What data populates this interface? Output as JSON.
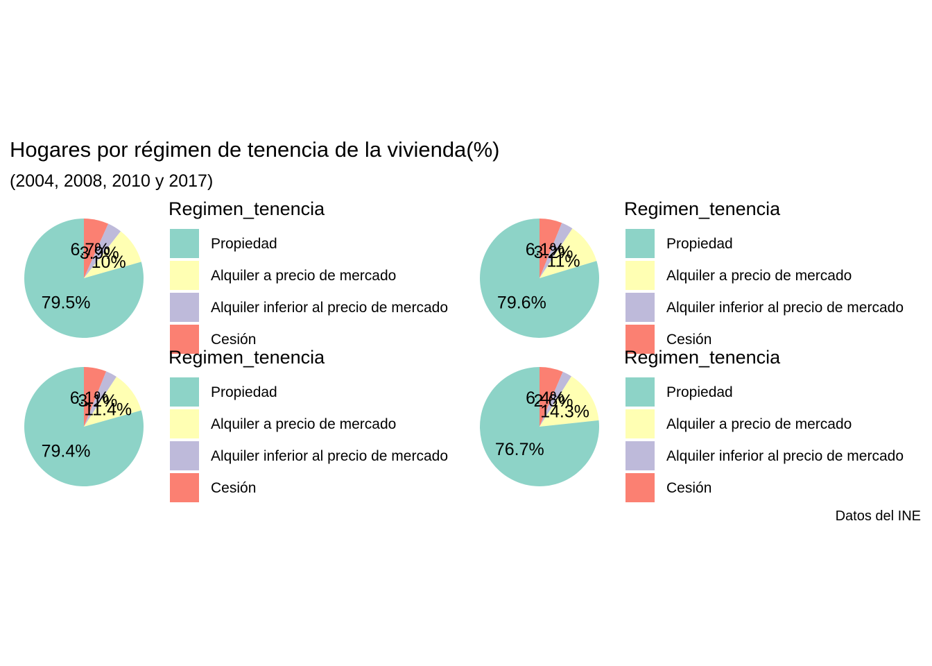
{
  "title": "Hogares por régimen de tenencia de la vivienda(%)",
  "subtitle": "(2004, 2008, 2010 y 2017)",
  "caption": "Datos del INE",
  "legend": {
    "title": "Regimen_tenencia",
    "items": [
      {
        "label": "Propiedad",
        "color": "#8DD3C7"
      },
      {
        "label": "Alquiler a precio de mercado",
        "color": "#FFFFB3"
      },
      {
        "label": "Alquiler inferior al precio de mercado",
        "color": "#BEBADA"
      },
      {
        "label": "Cesión",
        "color": "#FB8072"
      }
    ]
  },
  "chart_data": [
    {
      "type": "pie",
      "categories": [
        "Propiedad",
        "Alquiler a precio de mercado",
        "Alquiler inferior al precio de mercado",
        "Cesión"
      ],
      "values": [
        79.5,
        10,
        3.9,
        6.7
      ],
      "labels": [
        "79.5%",
        "10%",
        "3.9%",
        "6.7%"
      ]
    },
    {
      "type": "pie",
      "categories": [
        "Propiedad",
        "Alquiler a precio de mercado",
        "Alquiler inferior al precio de mercado",
        "Cesión"
      ],
      "values": [
        79.6,
        11,
        3.2,
        6.1
      ],
      "labels": [
        "79.6%",
        "11%",
        "3.2%",
        "6.1%"
      ]
    },
    {
      "type": "pie",
      "categories": [
        "Propiedad",
        "Alquiler a precio de mercado",
        "Alquiler inferior al precio de mercado",
        "Cesión"
      ],
      "values": [
        79.4,
        11.4,
        3.1,
        6.1
      ],
      "labels": [
        "79.4%",
        "11.4%",
        "3.1%",
        "6.1%"
      ]
    },
    {
      "type": "pie",
      "categories": [
        "Propiedad",
        "Alquiler a precio de mercado",
        "Alquiler inferior al precio de mercado",
        "Cesión"
      ],
      "values": [
        76.7,
        14.3,
        2.6,
        6.4
      ],
      "labels": [
        "76.7%",
        "14.3%",
        "2.6%",
        "6.4%"
      ]
    }
  ]
}
